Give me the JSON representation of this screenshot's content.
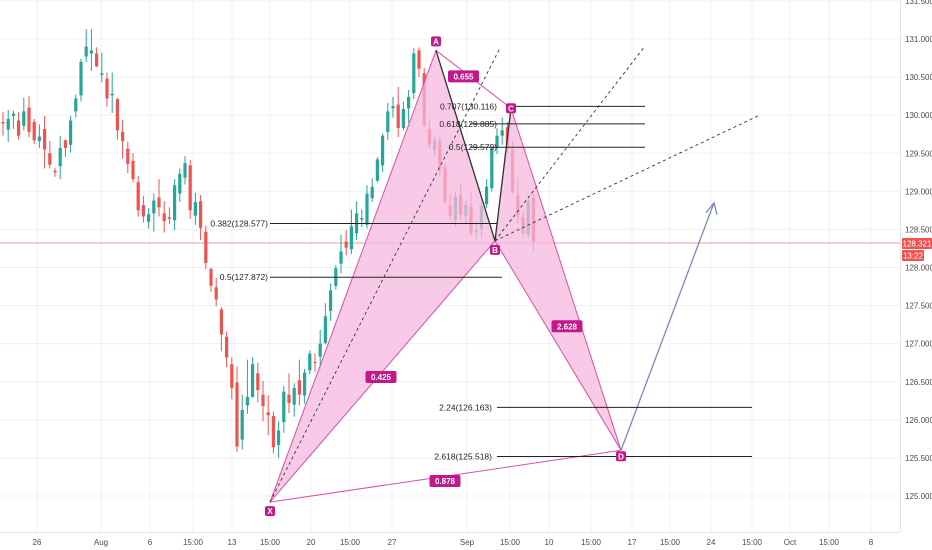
{
  "colors": {
    "up": "#26a69a",
    "down": "#ef5350",
    "pattern_fill": "#f5b8df",
    "pattern_line": "#d94fa9",
    "label_bg": "#c2188b",
    "projection": "#6f7fbf",
    "price_line": "#ef9a9a",
    "grid": "#eef0f3"
  },
  "price_tag": {
    "price": "128.321",
    "countdown": "13:22"
  },
  "chart_data": {
    "type": "candlestick",
    "y_ticks": [
      "131.500",
      "131.000",
      "130.500",
      "130.000",
      "129.500",
      "129.000",
      "128.500",
      "128.000",
      "127.500",
      "127.000",
      "126.500",
      "126.000",
      "125.500",
      "125.000"
    ],
    "ylim": [
      124.75,
      131.6
    ],
    "x_ticks": [
      "26",
      "Aug",
      "6",
      "15:00",
      "13",
      "15:00",
      "20",
      "15:00",
      "27",
      "Sep",
      "15:00",
      "10",
      "15:00",
      "17",
      "15:00",
      "24",
      "15:00",
      "Oct",
      "15:00",
      "8"
    ],
    "current_price": 128.321,
    "candles": [
      [
        129.91,
        130.04,
        129.73,
        129.89
      ],
      [
        129.81,
        130.07,
        129.65,
        129.95
      ],
      [
        129.99,
        130.06,
        129.82,
        130.02
      ],
      [
        129.93,
        130.04,
        129.68,
        129.73
      ],
      [
        129.86,
        130.23,
        129.8,
        130.05
      ],
      [
        130.1,
        130.25,
        129.71,
        129.78
      ],
      [
        129.91,
        129.95,
        129.62,
        129.67
      ],
      [
        129.66,
        129.88,
        129.57,
        129.72
      ],
      [
        129.82,
        129.99,
        129.3,
        129.55
      ],
      [
        129.5,
        129.66,
        129.3,
        129.35
      ],
      [
        129.27,
        129.31,
        129.19,
        129.25
      ],
      [
        129.33,
        129.73,
        129.16,
        129.57
      ],
      [
        129.67,
        129.68,
        129.45,
        129.57
      ],
      [
        129.61,
        129.99,
        129.51,
        129.93
      ],
      [
        130.05,
        130.27,
        129.97,
        130.22
      ],
      [
        130.26,
        130.74,
        130.18,
        130.7
      ],
      [
        130.77,
        131.13,
        130.7,
        130.9
      ],
      [
        130.81,
        131.13,
        130.58,
        130.85
      ],
      [
        130.81,
        130.89,
        130.63,
        130.64
      ],
      [
        130.53,
        130.82,
        130.43,
        130.55
      ],
      [
        130.48,
        130.56,
        130.11,
        130.22
      ],
      [
        130.26,
        130.56,
        130.03,
        130.28
      ],
      [
        130.21,
        130.23,
        129.68,
        129.8
      ],
      [
        129.78,
        129.94,
        129.43,
        129.66
      ],
      [
        129.56,
        129.65,
        129.24,
        129.36
      ],
      [
        129.4,
        129.5,
        129.12,
        129.16
      ],
      [
        129.12,
        129.2,
        128.67,
        128.75
      ],
      [
        128.82,
        128.94,
        128.59,
        128.67
      ],
      [
        128.6,
        128.78,
        128.51,
        128.7
      ],
      [
        128.71,
        128.97,
        128.47,
        128.88
      ],
      [
        128.92,
        129.16,
        128.67,
        128.79
      ],
      [
        128.71,
        128.87,
        128.46,
        128.61
      ],
      [
        128.66,
        128.79,
        128.57,
        128.64
      ],
      [
        128.62,
        129.16,
        128.49,
        129.08
      ],
      [
        128.97,
        129.3,
        128.86,
        129.23
      ],
      [
        129.18,
        129.46,
        129.09,
        129.37
      ],
      [
        129.34,
        129.41,
        128.64,
        128.75
      ],
      [
        128.68,
        128.98,
        128.56,
        128.86
      ],
      [
        128.87,
        128.95,
        128.36,
        128.52
      ],
      [
        128.47,
        128.55,
        127.98,
        128.06
      ],
      [
        127.98,
        128.0,
        127.68,
        127.76
      ],
      [
        127.74,
        127.86,
        127.49,
        127.58
      ],
      [
        127.45,
        127.48,
        126.9,
        127.12
      ],
      [
        127.09,
        127.16,
        126.69,
        126.82
      ],
      [
        126.73,
        126.82,
        126.27,
        126.42
      ],
      [
        126.49,
        126.7,
        125.58,
        125.65
      ],
      [
        125.74,
        126.33,
        125.61,
        126.13
      ],
      [
        126.19,
        126.79,
        126.08,
        126.3
      ],
      [
        126.3,
        126.82,
        126.29,
        126.73
      ],
      [
        126.61,
        126.75,
        126.23,
        126.39
      ],
      [
        126.33,
        126.51,
        125.98,
        126.18
      ],
      [
        126.1,
        126.32,
        125.8,
        126.06
      ],
      [
        126.05,
        126.11,
        125.56,
        125.64
      ],
      [
        125.67,
        125.98,
        125.5,
        125.86
      ],
      [
        125.97,
        126.44,
        125.83,
        126.37
      ],
      [
        126.33,
        126.61,
        126.09,
        126.22
      ],
      [
        126.2,
        126.48,
        126.04,
        126.42
      ],
      [
        126.52,
        126.79,
        126.19,
        126.33
      ],
      [
        126.32,
        126.67,
        126.21,
        126.62
      ],
      [
        126.65,
        126.91,
        126.6,
        126.87
      ],
      [
        126.76,
        126.87,
        126.63,
        126.75
      ],
      [
        126.83,
        127.18,
        126.66,
        127.0
      ],
      [
        127.01,
        127.53,
        126.99,
        127.36
      ],
      [
        127.43,
        127.79,
        127.3,
        127.7
      ],
      [
        127.76,
        128.03,
        127.71,
        127.99
      ],
      [
        128.05,
        128.43,
        127.92,
        128.21
      ],
      [
        128.34,
        128.49,
        128.16,
        128.26
      ],
      [
        128.24,
        128.76,
        128.18,
        128.54
      ],
      [
        128.45,
        128.87,
        128.36,
        128.71
      ],
      [
        128.63,
        128.76,
        128.53,
        128.65
      ],
      [
        128.56,
        129.08,
        128.51,
        128.97
      ],
      [
        128.91,
        129.17,
        128.86,
        129.06
      ],
      [
        129.14,
        129.45,
        129.12,
        129.42
      ],
      [
        129.34,
        129.76,
        129.25,
        129.73
      ],
      [
        129.78,
        130.16,
        129.67,
        130.05
      ],
      [
        130.09,
        130.24,
        129.97,
        130.12
      ],
      [
        130.14,
        130.37,
        129.71,
        129.83
      ],
      [
        129.83,
        130.18,
        129.8,
        130.08
      ],
      [
        130.09,
        130.33,
        129.9,
        130.24
      ],
      [
        130.29,
        130.88,
        130.21,
        130.81
      ],
      [
        130.85,
        130.89,
        130.5,
        130.61
      ],
      [
        130.55,
        130.62,
        129.84,
        129.87
      ],
      [
        129.82,
        129.94,
        129.56,
        129.61
      ],
      [
        129.54,
        129.74,
        129.46,
        129.67
      ],
      [
        129.66,
        129.71,
        129.2,
        129.29
      ],
      [
        129.32,
        129.37,
        128.83,
        128.86
      ],
      [
        128.81,
        128.98,
        128.62,
        128.68
      ],
      [
        128.62,
        128.99,
        128.54,
        128.93
      ],
      [
        128.95,
        129.11,
        128.62,
        128.69
      ],
      [
        128.68,
        128.88,
        128.56,
        128.82
      ],
      [
        128.8,
        128.99,
        128.41,
        128.45
      ],
      [
        128.47,
        128.6,
        128.37,
        128.49
      ],
      [
        128.51,
        128.86,
        128.38,
        128.81
      ],
      [
        128.83,
        129.16,
        128.78,
        129.06
      ],
      [
        129.04,
        129.57,
        129.0,
        129.56
      ],
      [
        129.58,
        129.83,
        129.49,
        129.73
      ],
      [
        129.73,
        129.97,
        129.61,
        129.8
      ],
      [
        129.84,
        129.91,
        129.51,
        129.56
      ],
      [
        129.55,
        129.66,
        128.97,
        129.0
      ],
      [
        128.95,
        129.18,
        128.58,
        128.69
      ],
      [
        128.66,
        128.75,
        128.38,
        128.45
      ],
      [
        128.43,
        128.9,
        128.39,
        128.87
      ],
      [
        128.91,
        128.97,
        128.2,
        128.34
      ]
    ],
    "harmonic": {
      "points": [
        {
          "label": "X",
          "price": 124.92
        },
        {
          "label": "A",
          "price": 130.85
        },
        {
          "label": "B",
          "price": 128.35
        },
        {
          "label": "C",
          "price": 130.09
        },
        {
          "label": "D",
          "price": 125.6
        }
      ],
      "ratios": [
        "0.655",
        "0.425",
        "2.628",
        "0.878"
      ]
    },
    "fib_levels": [
      {
        "label": "0.707(130.116)",
        "price": 130.116
      },
      {
        "label": "0.618(129.885)",
        "price": 129.885
      },
      {
        "label": "0.5(129.579)",
        "price": 129.579
      },
      {
        "label": "0.382(128.577)",
        "price": 128.577
      },
      {
        "label": "0.5(127.872)",
        "price": 127.872
      },
      {
        "label": "2.24(126.163)",
        "price": 126.163
      },
      {
        "label": "2.618(125.518)",
        "price": 125.518
      }
    ],
    "projection_target": 128.85
  }
}
